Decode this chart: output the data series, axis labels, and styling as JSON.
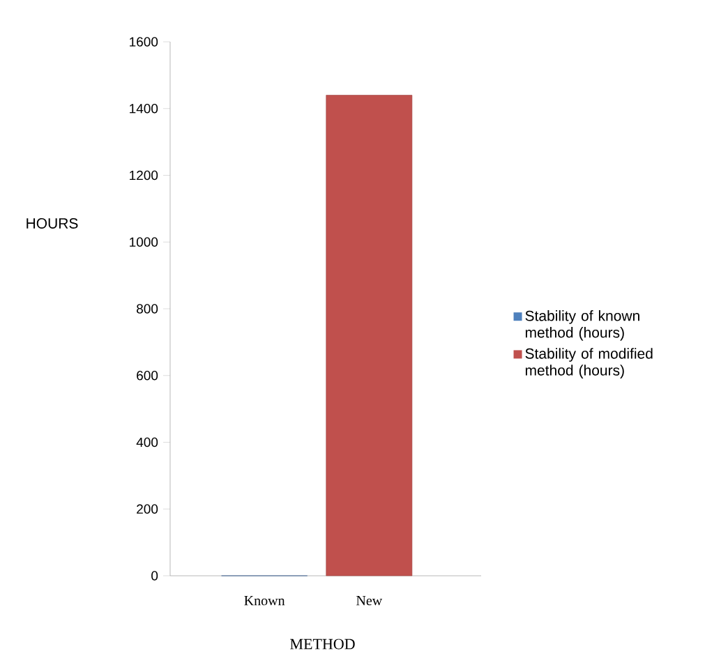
{
  "chart_data": {
    "type": "bar",
    "xlabel": "METHOD",
    "ylabel": "HOURS",
    "categories": [
      "Known",
      "New"
    ],
    "series": [
      {
        "name": "Stability of known method (hours)",
        "color": "#4f81bd",
        "values": [
          0,
          null
        ]
      },
      {
        "name": "Stability of modified method (hours)",
        "color": "#c0504d",
        "values": [
          null,
          1440
        ]
      }
    ],
    "ylim": [
      0,
      1600
    ],
    "yticks": [
      0,
      200,
      400,
      600,
      800,
      1000,
      1200,
      1400,
      1600
    ],
    "legend": "right"
  }
}
